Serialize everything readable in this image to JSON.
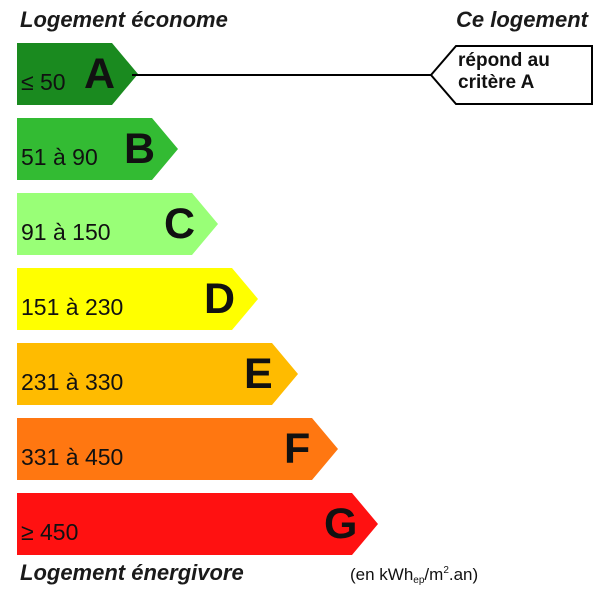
{
  "header": {
    "left": "Logement économe",
    "right": "Ce logement"
  },
  "footer": {
    "left": "Logement énergivore",
    "unit_prefix": "(en kWh",
    "unit_sub": "ep",
    "unit_mid": "/m",
    "unit_sup": "2",
    "unit_suffix": ".an)"
  },
  "classes": [
    {
      "letter": "A",
      "range": "≤ 50",
      "color": "#1a8a1f"
    },
    {
      "letter": "B",
      "range": "51 à 90",
      "color": "#33bb33"
    },
    {
      "letter": "C",
      "range": "91 à 150",
      "color": "#99ff77"
    },
    {
      "letter": "D",
      "range": "151 à 230",
      "color": "#ffff00"
    },
    {
      "letter": "E",
      "range": "231 à 330",
      "color": "#ffbb00"
    },
    {
      "letter": "F",
      "range": "331 à 450",
      "color": "#ff7711"
    },
    {
      "letter": "G",
      "range": "≥ 450",
      "color": "#ff1111"
    }
  ],
  "indicator": {
    "line1": "répond au",
    "line2": "critère A",
    "class": "A"
  }
}
